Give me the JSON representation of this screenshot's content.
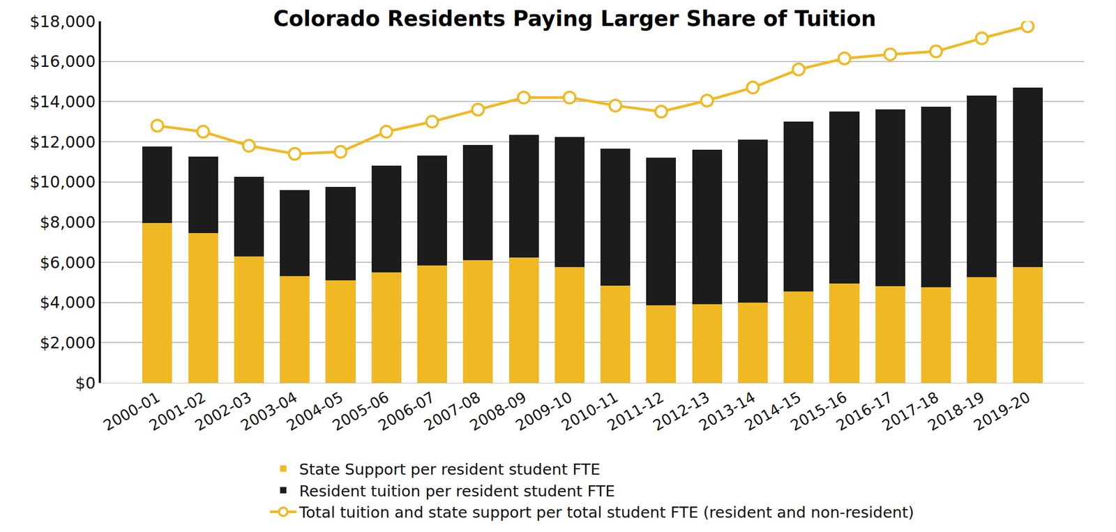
{
  "chart_data": {
    "type": "bar",
    "title": "Colorado Residents Paying Larger Share of Tuition",
    "stacked": true,
    "grid": true,
    "legend": "bottom",
    "categories": [
      "2000-01",
      "2001-02",
      "2002-03",
      "2003-04",
      "2004-05",
      "2005-06",
      "2006-07",
      "2007-08",
      "2008-09",
      "2009-10",
      "2010-11",
      "2011-12",
      "2012-13",
      "2013-14",
      "2014-15",
      "2015-16",
      "2016-17",
      "2017-18",
      "2018-19",
      "2019-20"
    ],
    "series": [
      {
        "name": "State Support per resident student FTE",
        "type": "bar",
        "color": "#f0b823",
        "values": [
          7950,
          7450,
          6300,
          5300,
          5100,
          5500,
          5850,
          6100,
          6250,
          5750,
          4850,
          3850,
          3900,
          4000,
          4550,
          4950,
          4800,
          4750,
          5250,
          5750
        ]
      },
      {
        "name": "Resident tuition per resident student FTE",
        "type": "bar",
        "color": "#1c1c1c",
        "values": [
          3800,
          3800,
          3950,
          4300,
          4650,
          5300,
          5450,
          5750,
          6100,
          6500,
          6800,
          7350,
          7700,
          8100,
          8450,
          8550,
          8800,
          9000,
          9050,
          8950
        ]
      },
      {
        "name": "Total tuition and state support per total student FTE (resident and non-resident)",
        "type": "line",
        "color": "#f0b823",
        "marker": "circle",
        "values": [
          12800,
          12500,
          11800,
          11400,
          11500,
          12500,
          13000,
          13600,
          14200,
          14200,
          13800,
          13500,
          14050,
          14700,
          15600,
          16150,
          16350,
          16500,
          17150,
          17750
        ]
      }
    ],
    "ylim": [
      0,
      18000
    ],
    "yticks": [
      {
        "value": 0,
        "label": "$0"
      },
      {
        "value": 2000,
        "label": "$2,000"
      },
      {
        "value": 4000,
        "label": "$4,000"
      },
      {
        "value": 6000,
        "label": "$6,000"
      },
      {
        "value": 8000,
        "label": "$8,000"
      },
      {
        "value": 10000,
        "label": "$10,000"
      },
      {
        "value": 12000,
        "label": "$12,000"
      },
      {
        "value": 14000,
        "label": "$14,000"
      },
      {
        "value": 16000,
        "label": "$16,000"
      },
      {
        "value": 18000,
        "label": "$18,000"
      }
    ]
  }
}
